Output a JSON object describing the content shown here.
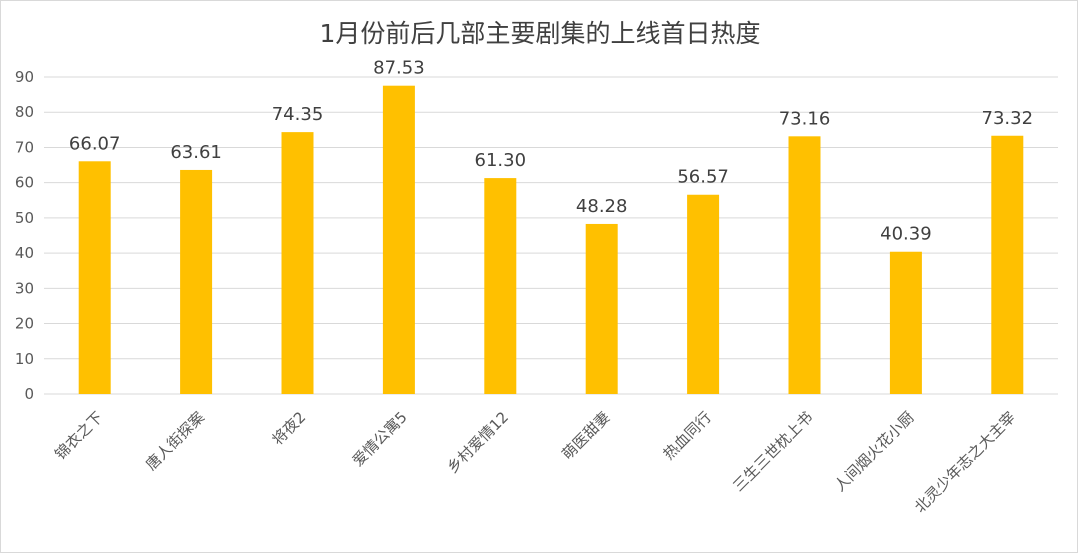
{
  "chart_data": {
    "type": "bar",
    "title": "1月份前后几部主要剧集的上线首日热度",
    "categories": [
      "锦衣之下",
      "唐人街探案",
      "将夜2",
      "爱情公寓5",
      "乡村爱情12",
      "萌医甜妻",
      "热血同行",
      "三生三世枕上书",
      "人间烟火花小厨",
      "北灵少年志之大主宰"
    ],
    "series": [
      {
        "values": [
          66.07,
          63.61,
          74.35,
          87.53,
          61.3,
          48.28,
          56.57,
          73.16,
          40.39,
          73.32
        ]
      }
    ],
    "value_labels": [
      "66.07",
      "63.61",
      "74.35",
      "87.53",
      "61.30",
      "48.28",
      "56.57",
      "73.16",
      "40.39",
      "73.32"
    ],
    "y_ticks": [
      "0",
      "10",
      "20",
      "30",
      "40",
      "50",
      "60",
      "70",
      "80",
      "90"
    ],
    "ylim": [
      0,
      90
    ],
    "grid": true,
    "bar_color": "#FFC000",
    "grid_color": "#d9d9d9",
    "xlabel": "",
    "ylabel": ""
  }
}
